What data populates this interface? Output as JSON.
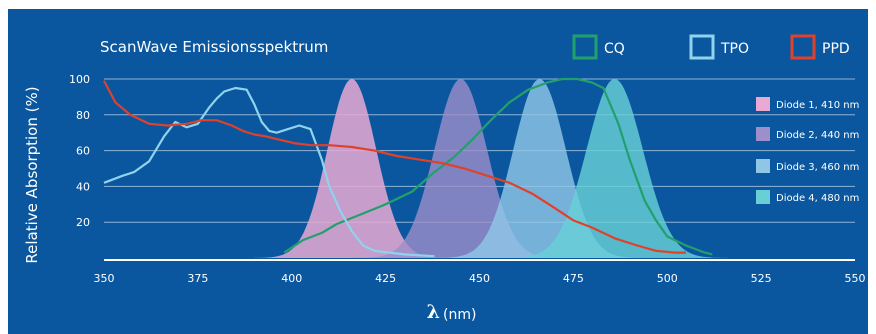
{
  "chart_data": {
    "type": "area",
    "title": "ScanWave Emissionsspektrum",
    "ylabel": "Relative Absorption (%)",
    "xlabel_symbol": "λ",
    "xlabel_unit": "(nm)",
    "xlim": [
      350,
      550
    ],
    "ylim": [
      0,
      100
    ],
    "xticks": [
      "350",
      "375",
      "400",
      "425",
      "450",
      "475",
      "500",
      "525",
      "550"
    ],
    "yticks": [
      "20",
      "40",
      "60",
      "80",
      "100"
    ],
    "grid": true,
    "legend_lines": [
      {
        "name": "CQ",
        "color": "#22a06b"
      },
      {
        "name": "TPO",
        "color": "#8fd3ec"
      },
      {
        "name": "PPD",
        "color": "#e0412b"
      }
    ],
    "diodes": [
      {
        "name": "Diode 1, 410 nm",
        "center": 416,
        "sigma": 6.5,
        "peak": 100,
        "color": "#e8a9d2",
        "opacity": 0.85
      },
      {
        "name": "Diode 2, 440 nm",
        "center": 445,
        "sigma": 7,
        "peak": 100,
        "color": "#9d8fc9",
        "opacity": 0.8
      },
      {
        "name": "Diode 3, 460 nm",
        "center": 466,
        "sigma": 7,
        "peak": 100,
        "color": "#8fc6e6",
        "opacity": 0.82
      },
      {
        "name": "Diode 4, 480 nm",
        "center": 486,
        "sigma": 7.5,
        "peak": 100,
        "color": "#68cfd6",
        "opacity": 0.82
      }
    ],
    "series": [
      {
        "name": "CQ",
        "color": "#22a06b",
        "x": [
          398,
          403,
          408,
          412,
          418,
          425,
          432,
          438,
          443,
          448,
          453,
          458,
          463,
          468,
          472,
          476,
          480,
          483,
          487,
          490,
          494,
          497,
          500,
          505,
          510,
          512
        ],
        "y": [
          3,
          10,
          14,
          19,
          24,
          30,
          37,
          48,
          56,
          66,
          77,
          87,
          94,
          98,
          100,
          100,
          98,
          95,
          75,
          55,
          32,
          21,
          12,
          7,
          3,
          2
        ]
      },
      {
        "name": "TPO",
        "color": "#8fd3ec",
        "x": [
          350,
          355,
          358,
          362,
          366,
          369,
          372,
          375,
          378,
          380,
          382,
          385,
          388,
          390,
          392,
          394,
          396,
          399,
          402,
          405,
          408,
          410,
          413,
          416,
          419,
          422,
          426,
          430,
          434,
          438
        ],
        "y": [
          42,
          46,
          48,
          54,
          68,
          76,
          73,
          75,
          84,
          89,
          93,
          95,
          94,
          86,
          76,
          71,
          70,
          72,
          74,
          72,
          55,
          40,
          26,
          15,
          7,
          4,
          3,
          2,
          1.5,
          1
        ]
      },
      {
        "name": "PPD",
        "color": "#e0412b",
        "x": [
          350,
          353,
          357,
          362,
          367,
          372,
          376,
          380,
          384,
          387,
          390,
          393,
          397,
          401,
          405,
          410,
          416,
          422,
          428,
          434,
          440,
          446,
          452,
          458,
          464,
          470,
          475,
          480,
          486,
          492,
          497,
          502,
          505
        ],
        "y": [
          99,
          87,
          80,
          75,
          74,
          75,
          77,
          77,
          74,
          71,
          69,
          68,
          66,
          64,
          63,
          63,
          62,
          60,
          57,
          55,
          53,
          50,
          46,
          42,
          36,
          28,
          21,
          17,
          11,
          7,
          4,
          3,
          3
        ]
      }
    ]
  }
}
